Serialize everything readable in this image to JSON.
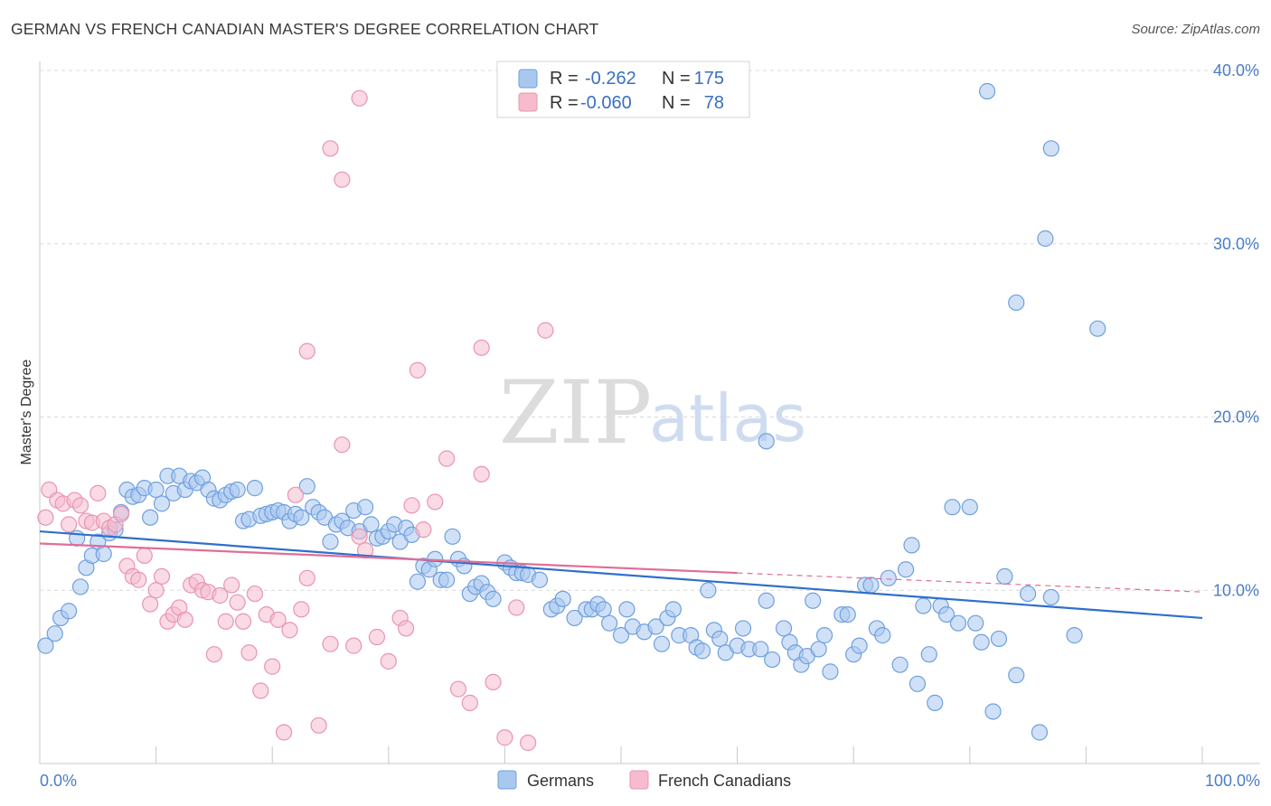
{
  "title": "GERMAN VS FRENCH CANADIAN MASTER'S DEGREE CORRELATION CHART",
  "source": "Source: ZipAtlas.com",
  "watermark": {
    "zip": "ZIP",
    "atlas": "atlas"
  },
  "colors": {
    "germans_fill": "#a9c8f0",
    "germans_stroke": "#6f9fde",
    "germans_line": "#2f6fcb",
    "french_fill": "#f6bccd",
    "french_stroke": "#e895b0",
    "french_line": "#e06e96",
    "tick_text": "#4a7cc9",
    "grid": "#d8d8d8"
  },
  "legend": {
    "rows": [
      {
        "r_label": "R =",
        "r_value": "-0.262",
        "n_label": "N =",
        "n_value": "175"
      },
      {
        "r_label": "R =",
        "r_value": "-0.060",
        "n_label": "N =",
        "n_value": "78"
      }
    ]
  },
  "bottom_legend": [
    "Germans",
    "French Canadians"
  ],
  "chart_data": {
    "type": "scatter",
    "title": "GERMAN VS FRENCH CANADIAN MASTER'S DEGREE CORRELATION CHART",
    "xlabel": "",
    "ylabel": "Master's Degree",
    "xlim": [
      0,
      100
    ],
    "ylim": [
      0,
      40
    ],
    "x_tick_labels": [
      "0.0%",
      "100.0%"
    ],
    "y_ticks": [
      10,
      20,
      30,
      40
    ],
    "y_tick_labels": [
      "10.0%",
      "20.0%",
      "30.0%",
      "40.0%"
    ],
    "grid": "horizontal dashed",
    "legend_position": "top-center",
    "series": [
      {
        "name": "Germans",
        "r": -0.262,
        "n": 175,
        "trend": {
          "x": [
            0,
            100
          ],
          "y": [
            13.4,
            8.4
          ]
        },
        "points": [
          [
            0.5,
            6.8
          ],
          [
            1.3,
            7.5
          ],
          [
            1.8,
            8.4
          ],
          [
            2.5,
            8.8
          ],
          [
            3.2,
            13.0
          ],
          [
            3.5,
            10.2
          ],
          [
            4,
            11.3
          ],
          [
            4.5,
            12.0
          ],
          [
            5,
            12.8
          ],
          [
            5.5,
            12.1
          ],
          [
            6,
            13.3
          ],
          [
            6.5,
            13.5
          ],
          [
            7,
            14.5
          ],
          [
            7.5,
            15.8
          ],
          [
            8,
            15.4
          ],
          [
            8.5,
            15.5
          ],
          [
            9,
            15.9
          ],
          [
            9.5,
            14.2
          ],
          [
            10,
            15.8
          ],
          [
            10.5,
            15.0
          ],
          [
            11,
            16.6
          ],
          [
            11.5,
            15.6
          ],
          [
            12,
            16.6
          ],
          [
            12.5,
            15.8
          ],
          [
            13,
            16.3
          ],
          [
            13.5,
            16.2
          ],
          [
            14,
            16.5
          ],
          [
            14.5,
            15.8
          ],
          [
            15,
            15.3
          ],
          [
            15.5,
            15.2
          ],
          [
            16,
            15.5
          ],
          [
            16.5,
            15.7
          ],
          [
            17,
            15.8
          ],
          [
            17.5,
            14.0
          ],
          [
            18,
            14.1
          ],
          [
            18.5,
            15.9
          ],
          [
            19,
            14.3
          ],
          [
            19.5,
            14.4
          ],
          [
            20,
            14.5
          ],
          [
            20.5,
            14.6
          ],
          [
            21,
            14.5
          ],
          [
            21.5,
            14.0
          ],
          [
            22,
            14.4
          ],
          [
            22.5,
            14.2
          ],
          [
            23,
            16.0
          ],
          [
            23.5,
            14.8
          ],
          [
            24,
            14.5
          ],
          [
            24.5,
            14.2
          ],
          [
            25,
            12.8
          ],
          [
            25.5,
            13.8
          ],
          [
            26,
            14.0
          ],
          [
            26.5,
            13.6
          ],
          [
            27,
            14.6
          ],
          [
            27.5,
            13.4
          ],
          [
            28,
            14.8
          ],
          [
            28.5,
            13.8
          ],
          [
            29,
            13.0
          ],
          [
            29.5,
            13.1
          ],
          [
            30,
            13.4
          ],
          [
            30.5,
            13.8
          ],
          [
            31,
            12.8
          ],
          [
            31.5,
            13.6
          ],
          [
            32,
            13.2
          ],
          [
            32.5,
            10.5
          ],
          [
            33,
            11.4
          ],
          [
            33.5,
            11.2
          ],
          [
            34,
            11.8
          ],
          [
            34.5,
            10.6
          ],
          [
            35,
            10.6
          ],
          [
            35.5,
            13.1
          ],
          [
            36,
            11.8
          ],
          [
            36.5,
            11.4
          ],
          [
            37,
            9.8
          ],
          [
            37.5,
            10.2
          ],
          [
            38,
            10.4
          ],
          [
            38.5,
            9.9
          ],
          [
            39,
            9.5
          ],
          [
            40,
            11.6
          ],
          [
            40.5,
            11.3
          ],
          [
            41,
            11.0
          ],
          [
            41.5,
            11.0
          ],
          [
            42,
            10.9
          ],
          [
            43,
            10.6
          ],
          [
            44,
            8.9
          ],
          [
            44.5,
            9.1
          ],
          [
            45,
            9.5
          ],
          [
            46,
            8.4
          ],
          [
            47,
            8.9
          ],
          [
            47.5,
            8.9
          ],
          [
            48,
            9.2
          ],
          [
            48.5,
            8.9
          ],
          [
            49,
            8.1
          ],
          [
            50,
            7.4
          ],
          [
            50.5,
            8.9
          ],
          [
            51,
            7.9
          ],
          [
            52,
            7.6
          ],
          [
            53,
            7.9
          ],
          [
            53.5,
            6.9
          ],
          [
            54,
            8.4
          ],
          [
            54.5,
            8.9
          ],
          [
            55,
            7.4
          ],
          [
            56,
            7.4
          ],
          [
            56.5,
            6.7
          ],
          [
            57,
            6.5
          ],
          [
            57.5,
            10.0
          ],
          [
            58,
            7.7
          ],
          [
            58.5,
            7.2
          ],
          [
            59,
            6.4
          ],
          [
            60,
            6.8
          ],
          [
            60.5,
            7.8
          ],
          [
            61,
            6.6
          ],
          [
            62,
            6.6
          ],
          [
            62.5,
            9.4
          ],
          [
            63,
            6.0
          ],
          [
            64,
            7.8
          ],
          [
            64.5,
            7.0
          ],
          [
            65,
            6.4
          ],
          [
            65.5,
            5.7
          ],
          [
            66,
            6.2
          ],
          [
            66.5,
            9.4
          ],
          [
            67,
            6.6
          ],
          [
            67.5,
            7.4
          ],
          [
            68,
            5.3
          ],
          [
            69,
            8.6
          ],
          [
            69.5,
            8.6
          ],
          [
            70,
            6.3
          ],
          [
            70.5,
            6.8
          ],
          [
            71,
            10.3
          ],
          [
            71.5,
            10.3
          ],
          [
            72,
            7.8
          ],
          [
            72.5,
            7.4
          ],
          [
            73,
            10.7
          ],
          [
            74,
            5.7
          ],
          [
            74.5,
            11.2
          ],
          [
            75,
            12.6
          ],
          [
            75.5,
            4.6
          ],
          [
            76,
            9.1
          ],
          [
            76.5,
            6.3
          ],
          [
            77,
            3.5
          ],
          [
            77.5,
            9.1
          ],
          [
            78,
            8.6
          ],
          [
            78.5,
            14.8
          ],
          [
            79,
            8.1
          ],
          [
            80,
            14.8
          ],
          [
            80.5,
            8.1
          ],
          [
            81,
            7.0
          ],
          [
            82,
            3.0
          ],
          [
            82.5,
            7.2
          ],
          [
            83,
            10.8
          ],
          [
            84,
            5.1
          ],
          [
            85,
            9.8
          ],
          [
            86,
            1.8
          ],
          [
            87,
            9.6
          ],
          [
            89,
            7.4
          ],
          [
            81.5,
            38.8
          ],
          [
            87,
            35.5
          ],
          [
            86.5,
            30.3
          ],
          [
            84,
            26.6
          ],
          [
            91,
            25.1
          ],
          [
            62.5,
            18.6
          ]
        ]
      },
      {
        "name": "French Canadians",
        "r": -0.06,
        "n": 78,
        "trend": {
          "x": [
            0,
            60
          ],
          "y": [
            12.7,
            11.0
          ]
        },
        "trend_dashed": {
          "x": [
            60,
            100
          ],
          "y": [
            11.0,
            9.9
          ]
        },
        "points": [
          [
            0.5,
            14.2
          ],
          [
            0.8,
            15.8
          ],
          [
            1.5,
            15.2
          ],
          [
            2,
            15.0
          ],
          [
            2.5,
            13.8
          ],
          [
            3,
            15.2
          ],
          [
            3.5,
            14.9
          ],
          [
            4,
            14.0
          ],
          [
            4.5,
            13.9
          ],
          [
            5,
            15.6
          ],
          [
            5.5,
            14.0
          ],
          [
            6,
            13.6
          ],
          [
            6.5,
            13.8
          ],
          [
            7,
            14.4
          ],
          [
            7.5,
            11.4
          ],
          [
            8,
            10.8
          ],
          [
            8.5,
            10.6
          ],
          [
            9,
            12.0
          ],
          [
            9.5,
            9.2
          ],
          [
            10,
            10.0
          ],
          [
            10.5,
            10.8
          ],
          [
            11,
            8.2
          ],
          [
            11.5,
            8.6
          ],
          [
            12,
            9.0
          ],
          [
            12.5,
            8.3
          ],
          [
            13,
            10.3
          ],
          [
            13.5,
            10.5
          ],
          [
            14,
            10.0
          ],
          [
            14.5,
            9.9
          ],
          [
            15,
            6.3
          ],
          [
            15.5,
            9.7
          ],
          [
            16,
            8.2
          ],
          [
            16.5,
            10.3
          ],
          [
            17,
            9.3
          ],
          [
            17.5,
            8.2
          ],
          [
            18,
            6.4
          ],
          [
            18.5,
            9.8
          ],
          [
            19,
            4.2
          ],
          [
            19.5,
            8.6
          ],
          [
            20,
            5.6
          ],
          [
            20.5,
            8.3
          ],
          [
            21,
            1.8
          ],
          [
            21.5,
            7.7
          ],
          [
            22,
            15.5
          ],
          [
            22.5,
            8.9
          ],
          [
            23,
            10.7
          ],
          [
            24,
            2.2
          ],
          [
            25,
            6.9
          ],
          [
            26,
            18.4
          ],
          [
            27,
            6.8
          ],
          [
            27.5,
            13.1
          ],
          [
            28,
            12.3
          ],
          [
            29,
            7.3
          ],
          [
            30,
            5.9
          ],
          [
            31,
            8.4
          ],
          [
            31.5,
            7.8
          ],
          [
            32,
            14.9
          ],
          [
            33,
            13.5
          ],
          [
            34,
            15.1
          ],
          [
            35,
            17.6
          ],
          [
            36,
            4.3
          ],
          [
            37,
            3.5
          ],
          [
            38,
            16.7
          ],
          [
            39,
            4.7
          ],
          [
            40,
            1.5
          ],
          [
            41,
            9.0
          ],
          [
            42,
            1.2
          ],
          [
            27.5,
            38.4
          ],
          [
            25,
            35.5
          ],
          [
            26,
            33.7
          ],
          [
            23,
            23.8
          ],
          [
            32.5,
            22.7
          ],
          [
            38,
            24.0
          ],
          [
            43.5,
            25.0
          ]
        ]
      }
    ]
  }
}
